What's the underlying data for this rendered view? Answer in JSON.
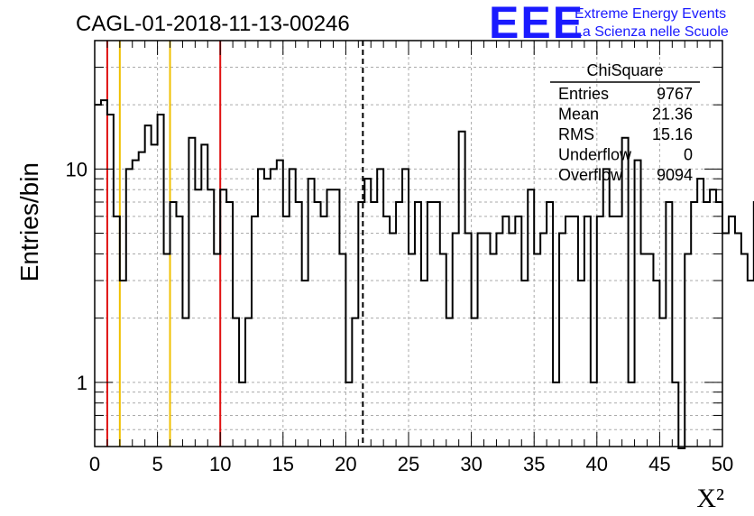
{
  "chart_data": {
    "type": "histogram",
    "title": "CAGL-01-2018-11-13-00246",
    "xlabel": "X²",
    "ylabel": "Entries/bin",
    "xlim": [
      0,
      50
    ],
    "ylim": [
      0.5,
      40
    ],
    "y_scale": "log",
    "grid": true,
    "grid_style": "dashed",
    "bin_width": 0.5,
    "bin_start": 0,
    "values": [
      20,
      21,
      18,
      6,
      3,
      10,
      11,
      12,
      16,
      13,
      18,
      4,
      7,
      6,
      2,
      14,
      8,
      13,
      8,
      4,
      8,
      7,
      2,
      1,
      2,
      6,
      10,
      9,
      10,
      11,
      6,
      10,
      7,
      3,
      9,
      7,
      6,
      8,
      8,
      4,
      1,
      2,
      7,
      9,
      7,
      10,
      6,
      5,
      7,
      10,
      4,
      7,
      3,
      7,
      7,
      4,
      2,
      5,
      15,
      5,
      2,
      5,
      5,
      4,
      5,
      6,
      5,
      6,
      3,
      8,
      4,
      5,
      7,
      1,
      5,
      6,
      6,
      3,
      6,
      1,
      6,
      10,
      6,
      6,
      14,
      1,
      11,
      4,
      4,
      3,
      2,
      7,
      1,
      0,
      4,
      7,
      9,
      7,
      8,
      7,
      5,
      6,
      5,
      4,
      3,
      7
    ],
    "x_ticks": [
      0,
      5,
      10,
      15,
      20,
      25,
      30,
      35,
      40,
      45,
      50
    ],
    "x_tick_labels": [
      "0",
      "5",
      "10",
      "15",
      "20",
      "25",
      "30",
      "35",
      "40",
      "45",
      "50"
    ],
    "y_tick_labels": [
      {
        "value": 1,
        "label": "1"
      },
      {
        "value": 10,
        "label": "10"
      }
    ],
    "vertical_lines": [
      {
        "x": 1,
        "color": "#e01010",
        "style": "solid"
      },
      {
        "x": 2,
        "color": "#f0c000",
        "style": "solid"
      },
      {
        "x": 6,
        "color": "#f0c000",
        "style": "solid"
      },
      {
        "x": 10,
        "color": "#e01010",
        "style": "solid"
      },
      {
        "x": 21.36,
        "color": "#000000",
        "style": "dashed"
      }
    ],
    "stats": {
      "title": "ChiSquare",
      "rows": [
        {
          "label": "Entries",
          "value": "9767"
        },
        {
          "label": "Mean",
          "value": "21.36"
        },
        {
          "label": "RMS",
          "value": "15.16"
        },
        {
          "label": "Underflow",
          "value": "0"
        },
        {
          "label": "Overflow",
          "value": "9094"
        }
      ]
    }
  },
  "logo": {
    "letters": "EEE",
    "line1": "Extreme Energy Events",
    "line2": "La Scienza nelle Scuole",
    "color": "#1a1aff"
  }
}
